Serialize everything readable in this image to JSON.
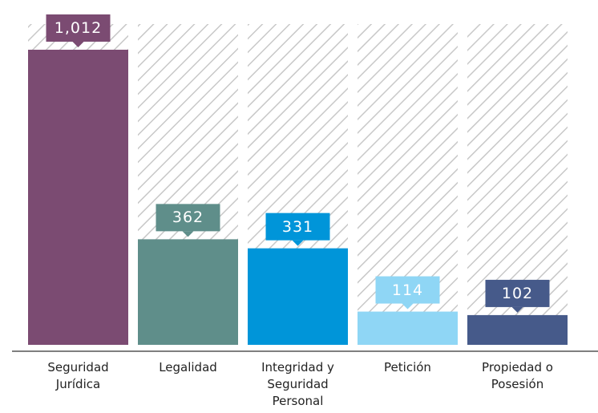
{
  "chart_data": {
    "type": "bar",
    "categories": [
      "Seguridad Jurídica",
      "Legalidad",
      "Integridad y Seguridad Personal",
      "Petición",
      "Propiedad o Posesión"
    ],
    "values": [
      1012,
      362,
      331,
      114,
      102
    ],
    "value_labels": [
      "1,012",
      "362",
      "331",
      "114",
      "102"
    ],
    "colors": [
      "#7b4b72",
      "#5f8e8a",
      "#0095d9",
      "#8fd6f5",
      "#465a8a"
    ],
    "ylim": [
      0,
      1100
    ]
  }
}
